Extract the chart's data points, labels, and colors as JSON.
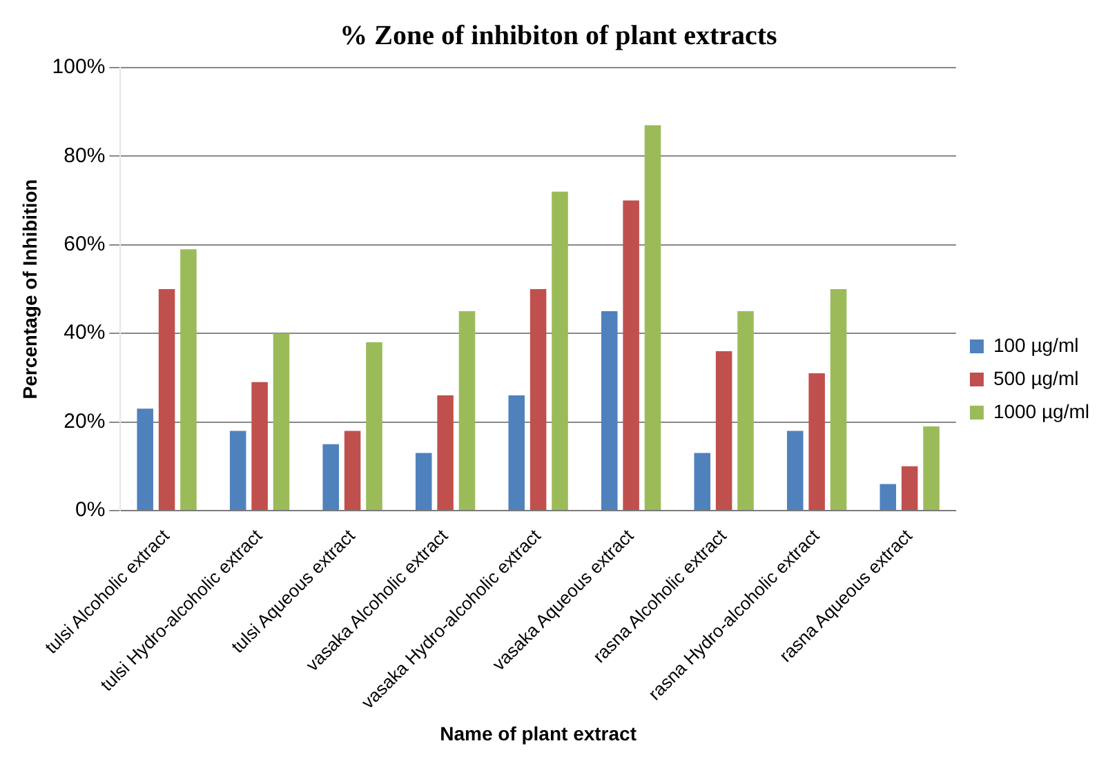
{
  "chart_data": {
    "type": "bar",
    "title": "% Zone of inhibiton of plant extracts",
    "xlabel": "Name of plant extract",
    "ylabel": "Percentage of Inhibition",
    "categories": [
      "tulsi Alcoholic extract",
      "tulsi Hydro-alcoholic extract",
      "tulsi Aqueous extract",
      "vasaka Alcoholic extract",
      "vasaka Hydro-alcoholic extract",
      "vasaka Aqueous extract",
      "rasna Alcoholic extract",
      "rasna Hydro-alcoholic extract",
      "rasna Aqueous extract"
    ],
    "series": [
      {
        "name": "100 µg/ml",
        "color": "#4f81bd",
        "values": [
          23,
          18,
          15,
          13,
          26,
          45,
          13,
          18,
          6
        ]
      },
      {
        "name": "500 µg/ml",
        "color": "#c0504d",
        "values": [
          50,
          29,
          18,
          26,
          50,
          70,
          36,
          31,
          10
        ]
      },
      {
        "name": "1000 µg/ml",
        "color": "#9bbb59",
        "values": [
          59,
          40,
          38,
          45,
          72,
          87,
          45,
          50,
          19
        ]
      }
    ],
    "ylim": [
      0,
      100
    ],
    "yticks": [
      {
        "value": 0,
        "label": "0%"
      },
      {
        "value": 20,
        "label": "20%"
      },
      {
        "value": 40,
        "label": "40%"
      },
      {
        "value": 60,
        "label": "60%"
      },
      {
        "value": 80,
        "label": "80%"
      },
      {
        "value": 100,
        "label": "100%"
      }
    ],
    "grid": "y",
    "legend": "right"
  }
}
